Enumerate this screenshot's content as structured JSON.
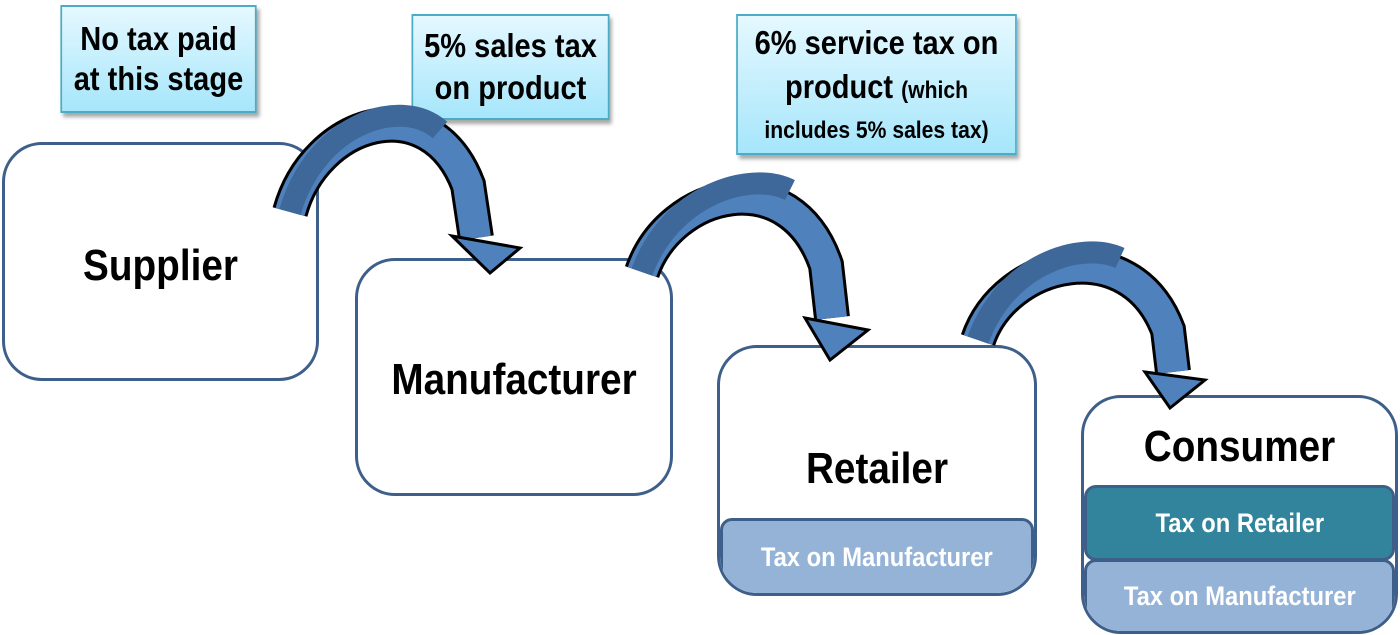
{
  "notes": {
    "supplier": {
      "line1": "No tax paid",
      "line2": "at this stage"
    },
    "manufacturer": {
      "line1": "5% sales tax",
      "line2": "on product"
    },
    "retailer": {
      "line1": "6% service tax on",
      "line2": "product",
      "line2_small": "(which",
      "line3": "includes 5% sales tax)"
    }
  },
  "stages": {
    "supplier": "Supplier",
    "manufacturer": "Manufacturer",
    "retailer": "Retailer",
    "consumer": "Consumer"
  },
  "bands": {
    "retailer_tax_on_manufacturer": "Tax on Manufacturer",
    "consumer_tax_on_retailer": "Tax on Retailer",
    "consumer_tax_on_manufacturer": "Tax on Manufacturer"
  },
  "colors": {
    "box_border": "#3e5f8a",
    "arrow_fill": "#4f81bd",
    "arrow_dark": "#3d6899",
    "note_border": "#4bacc6",
    "band_teal": "#31849b",
    "band_light": "#95b3d7"
  }
}
